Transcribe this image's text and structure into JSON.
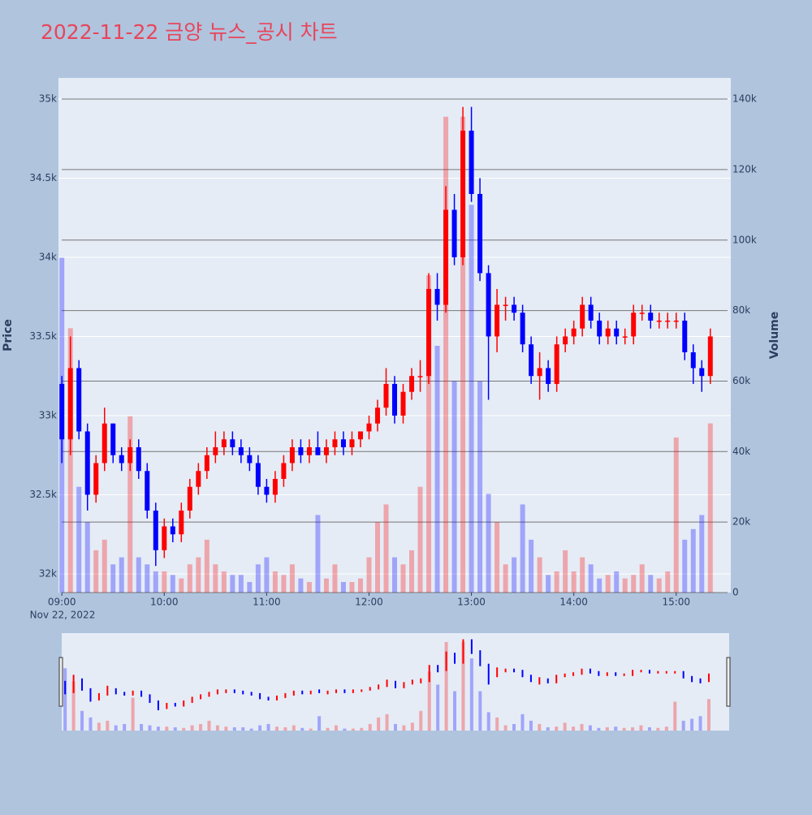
{
  "chart_data": {
    "type": "candlestick",
    "title": "2022-11-22 금양 뉴스_공시 차트",
    "y_title": "Price",
    "y2_title": "Volume",
    "x_date_label": "Nov 22, 2022",
    "x": [
      "09:00",
      "09:05",
      "09:10",
      "09:15",
      "09:20",
      "09:25",
      "09:30",
      "09:35",
      "09:40",
      "09:45",
      "09:50",
      "09:55",
      "10:00",
      "10:05",
      "10:10",
      "10:15",
      "10:20",
      "10:25",
      "10:30",
      "10:35",
      "10:40",
      "10:45",
      "10:50",
      "10:55",
      "11:00",
      "11:05",
      "11:10",
      "11:15",
      "11:20",
      "11:25",
      "11:30",
      "11:35",
      "11:40",
      "11:45",
      "11:50",
      "11:55",
      "12:00",
      "12:05",
      "12:10",
      "12:15",
      "12:20",
      "12:25",
      "12:30",
      "12:35",
      "12:40",
      "12:45",
      "12:50",
      "12:55",
      "13:00",
      "13:05",
      "13:10",
      "13:15",
      "13:20",
      "13:25",
      "13:30",
      "13:35",
      "13:40",
      "13:45",
      "13:50",
      "13:55",
      "14:00",
      "14:05",
      "14:10",
      "14:15",
      "14:20",
      "14:25",
      "14:30",
      "14:35",
      "14:40",
      "14:45",
      "14:50",
      "14:55",
      "15:00",
      "15:05",
      "15:10",
      "15:15",
      "15:20"
    ],
    "open": [
      33200,
      32850,
      33300,
      32900,
      32500,
      32700,
      32950,
      32750,
      32700,
      32800,
      32650,
      32400,
      32150,
      32300,
      32250,
      32400,
      32550,
      32650,
      32750,
      32800,
      32850,
      32800,
      32750,
      32700,
      32550,
      32500,
      32600,
      32700,
      32800,
      32750,
      32800,
      32750,
      32800,
      32850,
      32800,
      32850,
      32900,
      32950,
      33050,
      33200,
      33000,
      33150,
      33250,
      33250,
      33800,
      33700,
      34300,
      34000,
      34800,
      34400,
      33900,
      33500,
      33700,
      33700,
      33650,
      33450,
      33250,
      33300,
      33200,
      33450,
      33500,
      33550,
      33700,
      33600,
      33500,
      33550,
      33500,
      33500,
      33650,
      33650,
      33600,
      33600,
      33600,
      33600,
      33400,
      33300,
      33250
    ],
    "high": [
      33250,
      33500,
      33350,
      32950,
      32750,
      33050,
      32950,
      32800,
      32850,
      32850,
      32700,
      32450,
      32350,
      32350,
      32450,
      32600,
      32700,
      32800,
      32900,
      32900,
      32900,
      32850,
      32800,
      32750,
      32600,
      32650,
      32750,
      32850,
      32850,
      32850,
      32900,
      32850,
      32900,
      32900,
      32900,
      32900,
      33000,
      33100,
      33300,
      33250,
      33200,
      33300,
      33350,
      33900,
      33900,
      34450,
      34400,
      34950,
      34950,
      34500,
      33950,
      33800,
      33750,
      33750,
      33700,
      33500,
      33400,
      33350,
      33500,
      33550,
      33600,
      33750,
      33750,
      33650,
      33600,
      33600,
      33550,
      33700,
      33700,
      33700,
      33650,
      33650,
      33650,
      33650,
      33450,
      33350,
      33550
    ],
    "low": [
      32700,
      32750,
      32850,
      32400,
      32450,
      32650,
      32700,
      32650,
      32650,
      32600,
      32350,
      32050,
      32100,
      32200,
      32200,
      32350,
      32500,
      32600,
      32700,
      32750,
      32750,
      32700,
      32650,
      32500,
      32450,
      32450,
      32550,
      32650,
      32700,
      32700,
      32750,
      32700,
      32750,
      32750,
      32750,
      32800,
      32850,
      32900,
      33000,
      32950,
      32950,
      33100,
      33150,
      33200,
      33600,
      33650,
      33950,
      33950,
      34350,
      33850,
      33100,
      33400,
      33600,
      33600,
      33400,
      33200,
      33100,
      33150,
      33150,
      33400,
      33450,
      33500,
      33550,
      33450,
      33450,
      33450,
      33450,
      33450,
      33600,
      33550,
      33550,
      33550,
      33550,
      33350,
      33200,
      33150,
      33200
    ],
    "close": [
      32850,
      33300,
      32900,
      32500,
      32700,
      32950,
      32750,
      32700,
      32800,
      32650,
      32400,
      32150,
      32300,
      32250,
      32400,
      32550,
      32650,
      32750,
      32800,
      32850,
      32800,
      32750,
      32700,
      32550,
      32500,
      32600,
      32700,
      32800,
      32750,
      32800,
      32750,
      32800,
      32850,
      32800,
      32850,
      32900,
      32950,
      33050,
      33200,
      33000,
      33150,
      33250,
      33250,
      33800,
      33700,
      34300,
      34000,
      34800,
      34400,
      33900,
      33500,
      33700,
      33700,
      33650,
      33450,
      33250,
      33300,
      33200,
      33450,
      33500,
      33550,
      33700,
      33600,
      33500,
      33550,
      33500,
      33500,
      33650,
      33650,
      33600,
      33600,
      33600,
      33600,
      33400,
      33300,
      33250,
      33500
    ],
    "volume": [
      95000,
      75000,
      30000,
      20000,
      12000,
      15000,
      8000,
      10000,
      50000,
      10000,
      8000,
      6000,
      6000,
      5000,
      4000,
      8000,
      10000,
      15000,
      8000,
      6000,
      5000,
      5000,
      3000,
      8000,
      10000,
      6000,
      5000,
      8000,
      4000,
      3000,
      22000,
      4000,
      8000,
      3000,
      3000,
      4000,
      10000,
      20000,
      25000,
      10000,
      8000,
      12000,
      30000,
      90000,
      70000,
      135000,
      60000,
      135000,
      110000,
      60000,
      28000,
      20000,
      8000,
      10000,
      25000,
      15000,
      10000,
      5000,
      6000,
      12000,
      6000,
      10000,
      8000,
      4000,
      5000,
      6000,
      4000,
      5000,
      8000,
      5000,
      4000,
      6000,
      44000,
      15000,
      18000,
      22000,
      48000
    ],
    "up_color": "#ff0000",
    "down_color": "#0000ff",
    "xlim": [
      "08:58",
      "15:32"
    ],
    "xticks": [
      "09:00",
      "10:00",
      "11:00",
      "12:00",
      "13:00",
      "14:00",
      "15:00"
    ],
    "ylim": [
      31882,
      35133
    ],
    "yticks": [
      {
        "value": 32000,
        "label": "32k"
      },
      {
        "value": 32500,
        "label": "32.5k"
      },
      {
        "value": 33000,
        "label": "33k"
      },
      {
        "value": 33500,
        "label": "33.5k"
      },
      {
        "value": 34000,
        "label": "34k"
      },
      {
        "value": 34500,
        "label": "34.5k"
      },
      {
        "value": 35000,
        "label": "35k"
      }
    ],
    "y2lim": [
      0,
      146000
    ],
    "y2ticks": [
      0,
      {
        "value": 20000,
        "label": "20k"
      },
      {
        "value": 40000,
        "label": "40k"
      },
      {
        "value": 60000,
        "label": "60k"
      },
      {
        "value": 80000,
        "label": "80k"
      },
      {
        "value": 100000,
        "label": "100k"
      },
      {
        "value": 120000,
        "label": "120k"
      },
      {
        "value": 140000,
        "label": "140k"
      }
    ],
    "grid": true
  }
}
